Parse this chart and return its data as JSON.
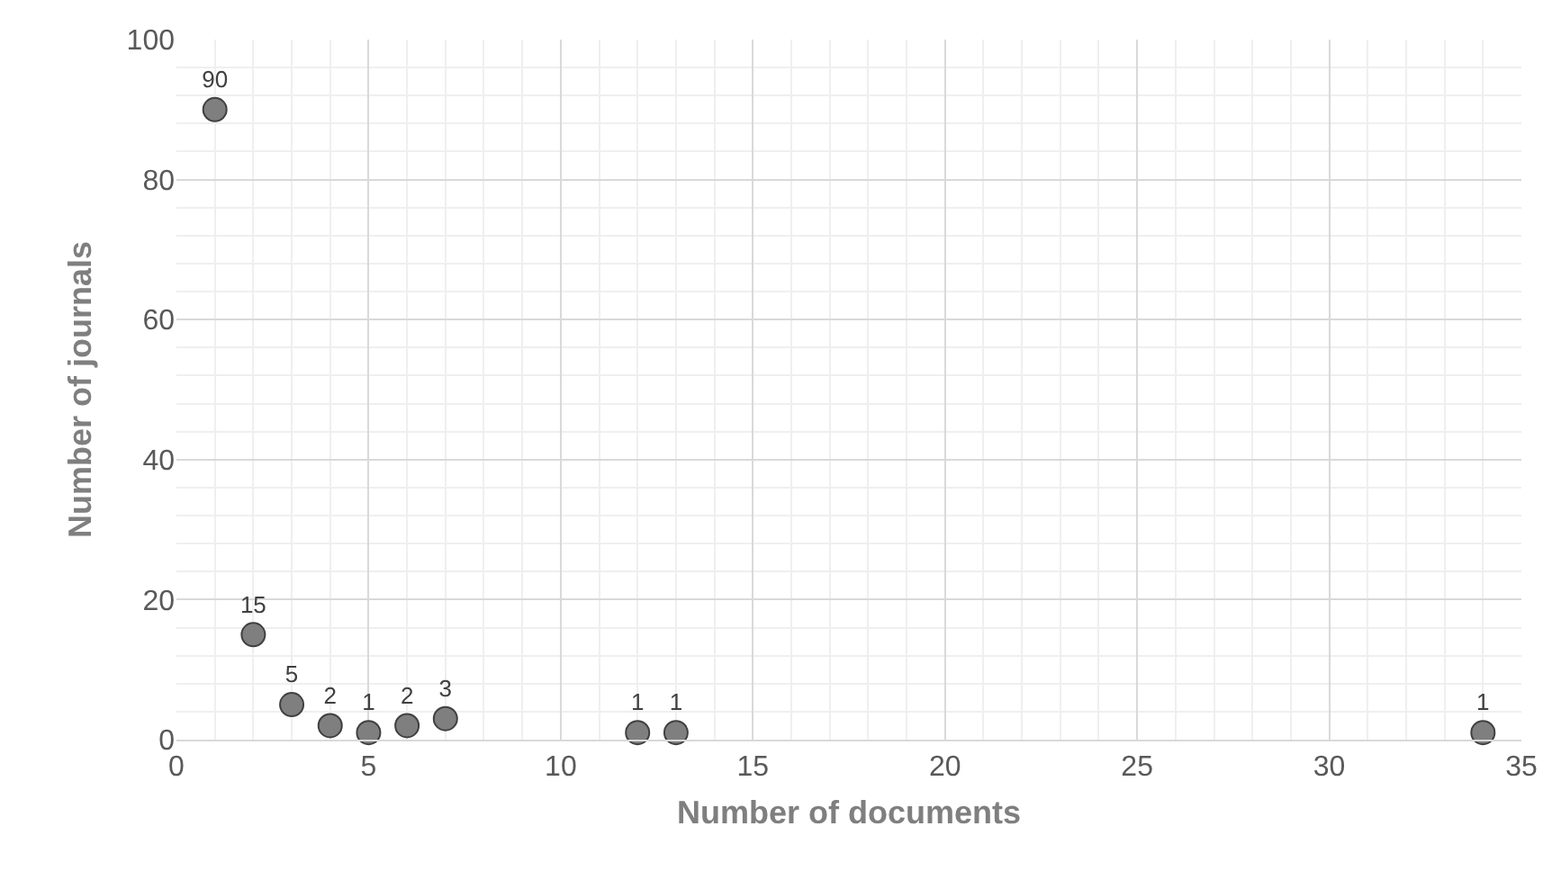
{
  "chart_data": {
    "type": "scatter",
    "xlabel": "Number of documents",
    "ylabel": "Number of journals",
    "x": [
      1,
      2,
      3,
      4,
      5,
      6,
      7,
      12,
      13,
      34
    ],
    "values": [
      90,
      15,
      5,
      2,
      1,
      2,
      3,
      1,
      1,
      1
    ],
    "color": "#7f7f7f",
    "marker": "circle",
    "data_labels": true,
    "grid": true,
    "xlim": [
      0,
      35
    ],
    "xticks": [
      0,
      5,
      10,
      15,
      20,
      25,
      30,
      35
    ],
    "ylim": [
      0,
      100
    ],
    "yticks": [
      0,
      20,
      40,
      60,
      80,
      100
    ]
  }
}
